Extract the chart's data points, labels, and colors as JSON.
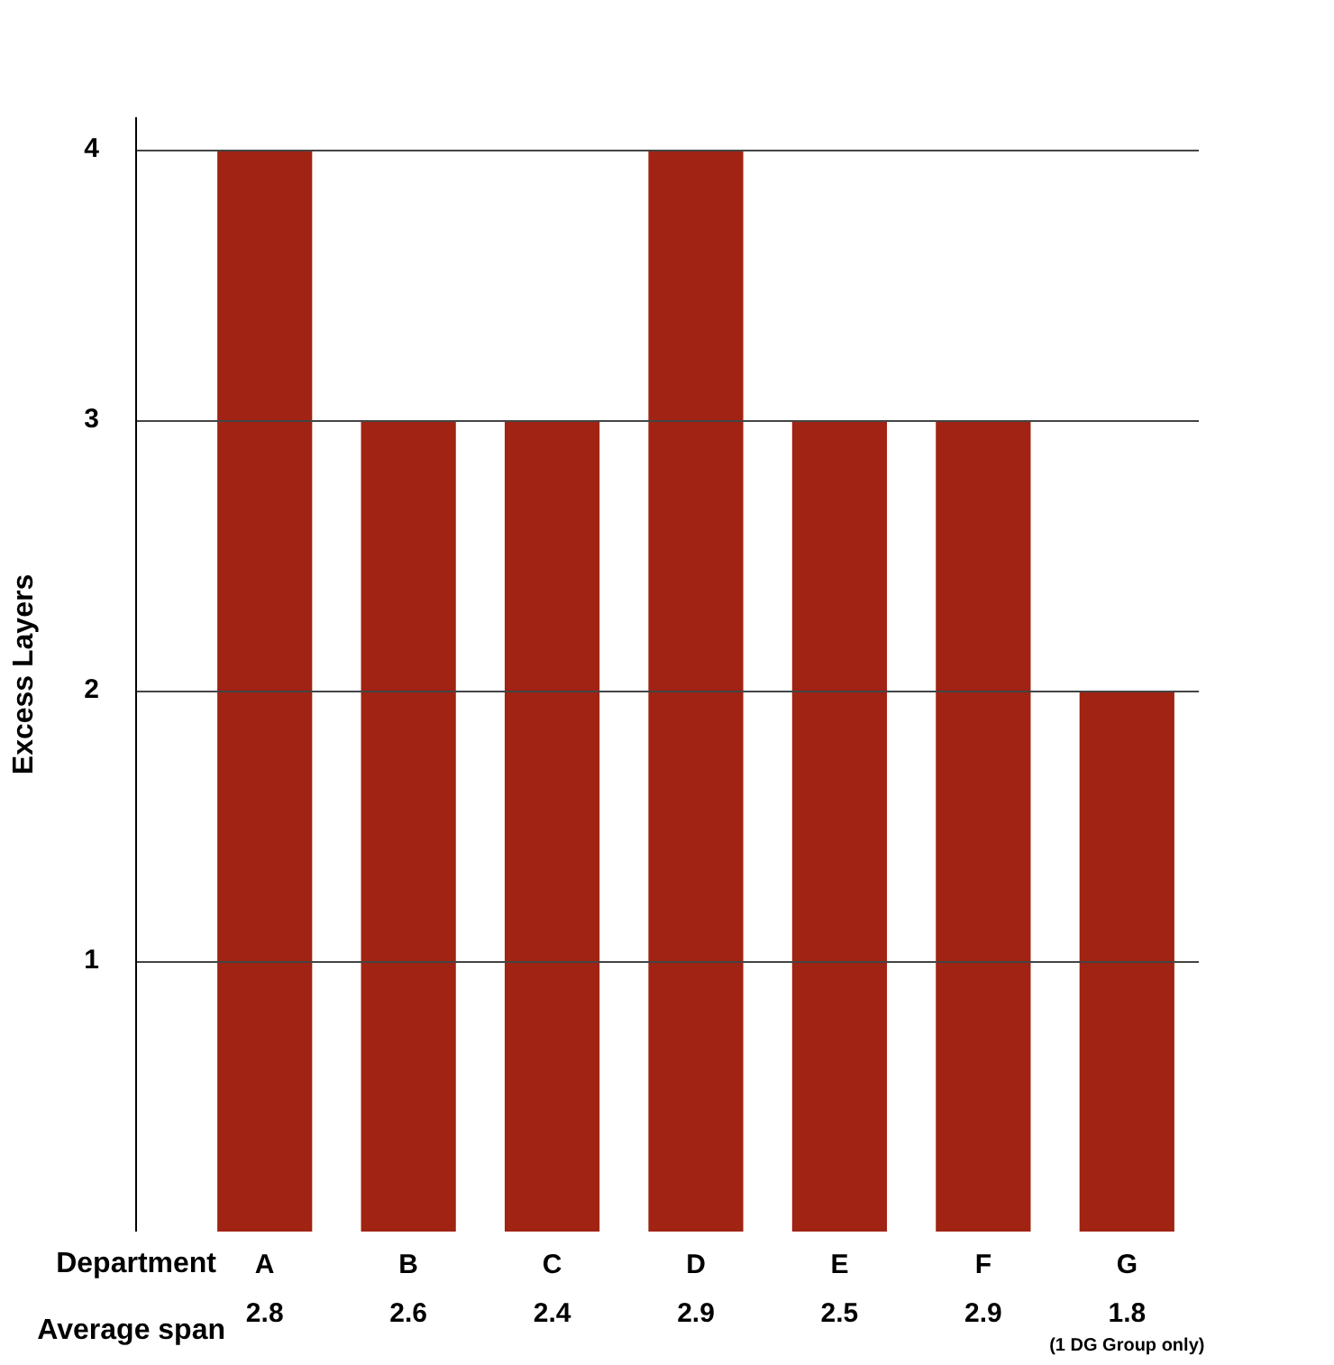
{
  "chart_data": {
    "type": "bar",
    "ylabel": "Excess Layers",
    "xlabel": "Department",
    "categories": [
      "A",
      "B",
      "C",
      "D",
      "E",
      "F",
      "G"
    ],
    "values": [
      4,
      3,
      3,
      4,
      3,
      3,
      2
    ],
    "color": "#a02313",
    "ylim": [
      0,
      4.12
    ],
    "yticks": [
      1,
      2,
      3,
      4
    ],
    "grid": "y",
    "legend": false,
    "annotations": [
      "Average span",
      "2.8",
      "2.6",
      "2.4",
      "2.9",
      "2.5",
      "2.9",
      "1.8",
      "(1 DG Group only)"
    ]
  }
}
